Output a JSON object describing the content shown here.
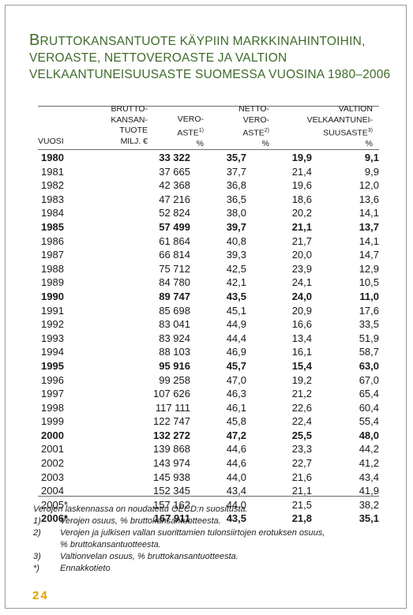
{
  "title": {
    "line1_cap": "B",
    "line1_rest": "RUTTOKANSANTUOTE KÄYPIIN MARKKINAHINTOIHIN,",
    "line2": "VEROASTE, NETTOVEROASTE JA VALTION",
    "line3": "VELKAANTUNEISUUSASTE SUOMESSA VUOSINA 1980–2006"
  },
  "headers": {
    "year": [
      "VUOSI"
    ],
    "gdp": [
      "BRUTTO-",
      "KANSAN-",
      "TUOTE",
      "MILJ. €"
    ],
    "tax": [
      "VERO-",
      "ASTE",
      "%"
    ],
    "tax_sup": "1)",
    "net": [
      "NETTO-",
      "VERO-",
      "ASTE",
      "%"
    ],
    "net_sup": "2)",
    "debt": [
      "VALTION",
      "VELKAANTUNEI-",
      "SUUSASTE",
      "%"
    ],
    "debt_sup": "3)"
  },
  "rows": [
    {
      "year": "1980",
      "gdp": "33 322",
      "tax": "35,7",
      "net": "19,9",
      "debt": "9,1",
      "bold": true
    },
    {
      "year": "1981",
      "gdp": "37 665",
      "tax": "37,7",
      "net": "21,4",
      "debt": "9,9",
      "bold": false
    },
    {
      "year": "1982",
      "gdp": "42 368",
      "tax": "36,8",
      "net": "19,6",
      "debt": "12,0",
      "bold": false
    },
    {
      "year": "1983",
      "gdp": "47 216",
      "tax": "36,5",
      "net": "18,6",
      "debt": "13,6",
      "bold": false
    },
    {
      "year": "1984",
      "gdp": "52 824",
      "tax": "38,0",
      "net": "20,2",
      "debt": "14,1",
      "bold": false
    },
    {
      "year": "1985",
      "gdp": "57 499",
      "tax": "39,7",
      "net": "21,1",
      "debt": "13,7",
      "bold": true
    },
    {
      "year": "1986",
      "gdp": "61 864",
      "tax": "40,8",
      "net": "21,7",
      "debt": "14,1",
      "bold": false
    },
    {
      "year": "1987",
      "gdp": "66 814",
      "tax": "39,3",
      "net": "20,0",
      "debt": "14,7",
      "bold": false
    },
    {
      "year": "1988",
      "gdp": "75 712",
      "tax": "42,5",
      "net": "23,9",
      "debt": "12,9",
      "bold": false
    },
    {
      "year": "1989",
      "gdp": "84 780",
      "tax": "42,1",
      "net": "24,1",
      "debt": "10,5",
      "bold": false
    },
    {
      "year": "1990",
      "gdp": "89 747",
      "tax": "43,5",
      "net": "24,0",
      "debt": "11,0",
      "bold": true
    },
    {
      "year": "1991",
      "gdp": "85 698",
      "tax": "45,1",
      "net": "20,9",
      "debt": "17,6",
      "bold": false
    },
    {
      "year": "1992",
      "gdp": "83 041",
      "tax": "44,9",
      "net": "16,6",
      "debt": "33,5",
      "bold": false
    },
    {
      "year": "1993",
      "gdp": "83 924",
      "tax": "44,4",
      "net": "13,4",
      "debt": "51,9",
      "bold": false
    },
    {
      "year": "1994",
      "gdp": "88 103",
      "tax": "46,9",
      "net": "16,1",
      "debt": "58,7",
      "bold": false
    },
    {
      "year": "1995",
      "gdp": "95 916",
      "tax": "45,7",
      "net": "15,4",
      "debt": "63,0",
      "bold": true
    },
    {
      "year": "1996",
      "gdp": "99 258",
      "tax": "47,0",
      "net": "19,2",
      "debt": "67,0",
      "bold": false
    },
    {
      "year": "1997",
      "gdp": "107 626",
      "tax": "46,3",
      "net": "21,2",
      "debt": "65,4",
      "bold": false
    },
    {
      "year": "1998",
      "gdp": "117 111",
      "tax": "46,1",
      "net": "22,6",
      "debt": "60,4",
      "bold": false
    },
    {
      "year": "1999",
      "gdp": "122 747",
      "tax": "45,8",
      "net": "22,4",
      "debt": "55,4",
      "bold": false
    },
    {
      "year": "2000",
      "gdp": "132 272",
      "tax": "47,2",
      "net": "25,5",
      "debt": "48,0",
      "bold": true
    },
    {
      "year": "2001",
      "gdp": "139 868",
      "tax": "44,6",
      "net": "23,3",
      "debt": "44,2",
      "bold": false
    },
    {
      "year": "2002",
      "gdp": "143 974",
      "tax": "44,6",
      "net": "22,7",
      "debt": "41,2",
      "bold": false
    },
    {
      "year": "2003",
      "gdp": "145 938",
      "tax": "44,0",
      "net": "21,6",
      "debt": "43,4",
      "bold": false
    },
    {
      "year": "2004",
      "gdp": "152 345",
      "tax": "43,4",
      "net": "21,1",
      "debt": "41,9",
      "bold": false
    },
    {
      "year": "2005*",
      "gdp": "157 162",
      "tax": "44,0",
      "net": "21,5",
      "debt": "38,2",
      "bold": false
    },
    {
      "year": "2006*",
      "gdp": "167 911",
      "tax": "43,5",
      "net": "21,8",
      "debt": "35,1",
      "bold": true
    }
  ],
  "notes": {
    "intro": "Verojen laskennassa on noudatettu OECD:n suositusta.",
    "items": [
      {
        "mark": "1)",
        "lines": [
          "Verojen osuus, % bruttokansantuotteesta."
        ]
      },
      {
        "mark": "2)",
        "lines": [
          "Verojen ja julkisen vallan suorittamien tulonsiirtojen erotuksen osuus,",
          "% bruttokansantuotteesta."
        ]
      },
      {
        "mark": "3)",
        "lines": [
          "Valtionvelan osuus, % bruttokansantuotteesta."
        ]
      },
      {
        "mark": "*)",
        "lines": [
          "Ennakkotieto"
        ]
      }
    ]
  },
  "page_number": "24",
  "colors": {
    "title": "#3d6b2a",
    "page_number": "#e0a100"
  }
}
